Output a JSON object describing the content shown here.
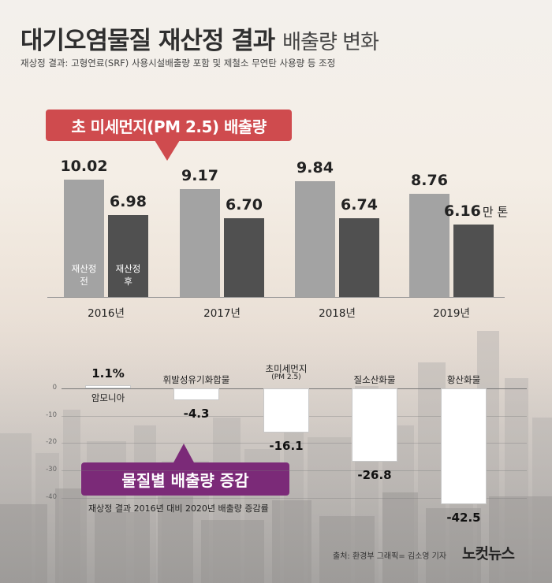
{
  "header": {
    "title_bold": "대기오염물질 재산정 결과",
    "title_light": "배출량 변화",
    "subtitle": "재상정 결과: 고형연료(SRF) 사용시설배출량 포함 및 제철소 무연탄 사용량 등 조정"
  },
  "top_callout": "초 미세먼지(PM 2.5) 배출량",
  "bottom_callout": "물질별 배출량 증감",
  "bottom_note": "재상정 결과 2016년 대비 2020년 배출량 증감률",
  "source_text": "출처: 환경부   그래픽= 김소영 기자",
  "logo_text": "노컷뉴스",
  "unit_label": "만 톤",
  "legend_labels": {
    "before": [
      "재산정",
      "전"
    ],
    "after": [
      "재산정",
      "후"
    ]
  },
  "colors": {
    "before": "#a3a3a3",
    "after": "#505050",
    "callout_red": "#cf4b4e",
    "callout_purple": "#7b2a78"
  },
  "chart_data": [
    {
      "type": "bar",
      "title": "초 미세먼지(PM 2.5) 배출량",
      "categories": [
        "2016년",
        "2017년",
        "2018년",
        "2019년"
      ],
      "series": [
        {
          "name": "재산정 전",
          "values": [
            10.02,
            9.17,
            9.84,
            8.76
          ]
        },
        {
          "name": "재산정 후",
          "values": [
            6.98,
            6.7,
            6.74,
            6.16
          ]
        }
      ],
      "value_labels": {
        "before": [
          "10.02",
          "9.17",
          "9.84",
          "8.76"
        ],
        "after": [
          "6.98",
          "6.70",
          "6.74",
          "6.16"
        ]
      },
      "unit": "만 톤",
      "ylim": [
        0,
        11
      ]
    },
    {
      "type": "bar",
      "title": "물질별 배출량 증감",
      "categories": [
        "암모니아",
        "휘발성유기화합물",
        "초미세먼지",
        "질소산화물",
        "황산화물"
      ],
      "category_sublabels": [
        "",
        "",
        "(PM 2.5)",
        "",
        ""
      ],
      "values": [
        1.1,
        -4.3,
        -16.1,
        -26.8,
        -42.5
      ],
      "value_labels": [
        "1.1%",
        "-4.3",
        "-16.1",
        "-26.8",
        "-42.5"
      ],
      "yticks": [
        0,
        -10,
        -20,
        -30,
        -40
      ],
      "ylim": [
        -45,
        0
      ]
    }
  ]
}
